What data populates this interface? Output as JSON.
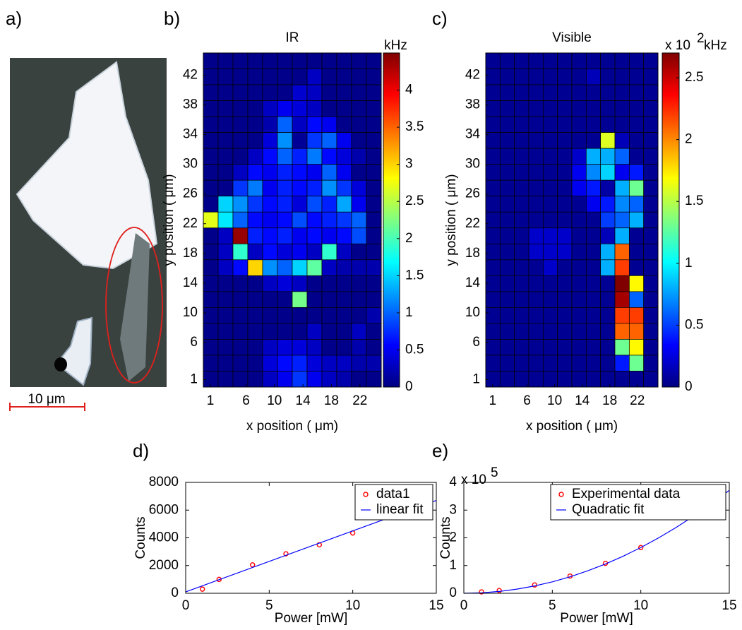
{
  "image_panel": {
    "panel": "a)",
    "scale_bar_label": "10 μm"
  },
  "chart_data": [
    {
      "type": "heatmap",
      "panel": "b)",
      "title": "IR",
      "colormap": "jet",
      "xlabel": "x position ( μm)",
      "ylabel": "y position ( μm)",
      "xlim": [
        0,
        25
      ],
      "ylim": [
        0,
        45
      ],
      "xticks": [
        1,
        6,
        10,
        14,
        18,
        22
      ],
      "yticks": [
        1,
        6,
        10,
        14,
        18,
        22,
        26,
        30,
        34,
        38,
        42
      ],
      "clim": [
        0,
        4.5
      ],
      "cticks": [
        0,
        0.5,
        1,
        1.5,
        2,
        2.5,
        3,
        3.5,
        4
      ],
      "colorbar_label": "kHz",
      "z": [
        [
          0.05,
          0.05,
          0.05,
          0.05,
          0.05,
          0.05,
          0.05,
          0.05,
          0.05,
          0.05,
          0.05,
          0.05
        ],
        [
          0.05,
          0.05,
          0.05,
          0.05,
          0.05,
          0.05,
          0.05,
          0.3,
          0.05,
          0.05,
          0.05,
          0.05
        ],
        [
          0.05,
          0.05,
          0.05,
          0.05,
          0.05,
          0.05,
          0.35,
          0.3,
          0.05,
          0.05,
          0.05,
          0.05
        ],
        [
          0.05,
          0.05,
          0.05,
          0.05,
          0.3,
          0.5,
          0.4,
          0.3,
          0.05,
          0.05,
          0.05,
          0.05
        ],
        [
          0.05,
          0.05,
          0.05,
          0.05,
          0.2,
          1.0,
          0.3,
          0.6,
          0.5,
          0.05,
          0.05,
          0.05
        ],
        [
          0.05,
          0.05,
          0.05,
          0.05,
          0.4,
          1.2,
          0.1,
          0.8,
          1.0,
          0.5,
          0.05,
          0.05
        ],
        [
          0.05,
          0.05,
          0.05,
          0.3,
          0.6,
          1.0,
          0.7,
          1.1,
          0.6,
          0.4,
          0.2,
          0.05
        ],
        [
          0.05,
          0.05,
          0.3,
          0.6,
          0.5,
          0.7,
          0.6,
          0.5,
          1.0,
          0.5,
          0.05,
          0.05
        ],
        [
          0.05,
          0.05,
          0.8,
          1.1,
          0.5,
          0.7,
          0.6,
          0.7,
          1.2,
          0.8,
          0.4,
          0.05
        ],
        [
          0.05,
          1.5,
          1.2,
          0.8,
          0.6,
          0.7,
          0.4,
          0.9,
          0.7,
          1.3,
          0.5,
          0.05
        ],
        [
          2.7,
          1.6,
          1.0,
          0.6,
          0.5,
          0.6,
          0.9,
          0.6,
          0.7,
          0.8,
          1.0,
          0.05
        ],
        [
          0.05,
          0.3,
          4.4,
          0.7,
          0.6,
          0.7,
          0.5,
          0.6,
          0.5,
          0.6,
          0.9,
          0.05
        ],
        [
          0.05,
          0.3,
          1.9,
          0.3,
          0.6,
          0.4,
          0.5,
          0.3,
          1.9,
          0.3,
          0.05,
          0.05
        ],
        [
          0.05,
          0.3,
          0.6,
          3.0,
          1.2,
          1.0,
          1.5,
          2.1,
          0.3,
          0.2,
          0.2,
          0.2
        ],
        [
          0.05,
          0.05,
          0.05,
          0.05,
          0.3,
          0.4,
          0.3,
          0.05,
          0.05,
          0.05,
          0.05,
          0.05
        ],
        [
          0.05,
          0.05,
          0.05,
          0.05,
          0.05,
          0.05,
          2.2,
          0.05,
          0.05,
          0.05,
          0.05,
          0.05
        ],
        [
          0.05,
          0.05,
          0.05,
          0.05,
          0.05,
          0.05,
          0.05,
          0.05,
          0.05,
          0.05,
          0.05,
          0.2
        ],
        [
          0.05,
          0.05,
          0.05,
          0.05,
          0.05,
          0.05,
          0.05,
          0.3,
          0.05,
          0.05,
          0.3,
          0.05
        ],
        [
          0.05,
          0.05,
          0.05,
          0.05,
          0.3,
          0.4,
          0.4,
          0.3,
          0.05,
          0.05,
          0.2,
          0.05
        ],
        [
          0.05,
          0.05,
          0.05,
          0.05,
          0.4,
          0.6,
          0.7,
          0.4,
          0.3,
          0.3,
          0.2,
          0.2
        ],
        [
          0.05,
          0.05,
          0.05,
          0.05,
          0.3,
          0.5,
          0.8,
          0.5,
          0.3,
          0.2,
          0.05,
          0.05
        ]
      ]
    },
    {
      "type": "heatmap",
      "panel": "c)",
      "title": "Visible",
      "colormap": "jet",
      "xlabel": "x position ( μm)",
      "ylabel": "y position ( μm)",
      "xlim": [
        0,
        25
      ],
      "ylim": [
        0,
        45
      ],
      "xticks": [
        1,
        6,
        10,
        14,
        18,
        22
      ],
      "yticks": [
        1,
        6,
        10,
        14,
        18,
        22,
        26,
        30,
        34,
        38,
        42
      ],
      "clim": [
        0,
        2.7
      ],
      "cticks": [
        0,
        0.5,
        1,
        1.5,
        2,
        2.5
      ],
      "colorbar_label": "x 10",
      "colorbar_label_power": "2",
      "colorbar_unit": "kHz",
      "z": [
        [
          0.05,
          0.05,
          0.05,
          0.05,
          0.05,
          0.05,
          0.05,
          0.05,
          0.05,
          0.05,
          0.05,
          0.05
        ],
        [
          0.05,
          0.05,
          0.05,
          0.05,
          0.05,
          0.05,
          0.05,
          0.15,
          0.05,
          0.05,
          0.05,
          0.05
        ],
        [
          0.05,
          0.05,
          0.05,
          0.05,
          0.05,
          0.05,
          0.05,
          0.05,
          0.05,
          0.05,
          0.05,
          0.05
        ],
        [
          0.05,
          0.05,
          0.05,
          0.05,
          0.05,
          0.05,
          0.05,
          0.05,
          0.05,
          0.05,
          0.05,
          0.05
        ],
        [
          0.05,
          0.05,
          0.05,
          0.05,
          0.05,
          0.05,
          0.05,
          0.05,
          0.05,
          0.05,
          0.05,
          0.05
        ],
        [
          0.05,
          0.05,
          0.05,
          0.05,
          0.05,
          0.05,
          0.05,
          0.05,
          1.6,
          0.15,
          0.05,
          0.05
        ],
        [
          0.05,
          0.05,
          0.05,
          0.05,
          0.05,
          0.05,
          0.2,
          0.8,
          0.8,
          0.6,
          0.05,
          0.05
        ],
        [
          0.05,
          0.05,
          0.05,
          0.05,
          0.05,
          0.05,
          0.3,
          0.7,
          0.9,
          0.3,
          0.4,
          0.05
        ],
        [
          0.05,
          0.05,
          0.05,
          0.05,
          0.05,
          0.05,
          0.3,
          0.4,
          0.1,
          0.8,
          1.3,
          0.05
        ],
        [
          0.05,
          0.05,
          0.05,
          0.05,
          0.05,
          0.05,
          0.05,
          0.3,
          0.4,
          0.7,
          0.6,
          0.05
        ],
        [
          0.05,
          0.05,
          0.05,
          0.05,
          0.05,
          0.05,
          0.05,
          0.05,
          0.5,
          0.6,
          0.8,
          0.05
        ],
        [
          0.05,
          0.05,
          0.05,
          0.2,
          0.2,
          0.2,
          0.05,
          0.05,
          0.15,
          0.8,
          0.05,
          0.05
        ],
        [
          0.05,
          0.05,
          0.05,
          0.2,
          0.2,
          0.2,
          0.05,
          0.05,
          0.8,
          2.1,
          0.05,
          0.05
        ],
        [
          0.05,
          0.05,
          0.05,
          0.05,
          0.2,
          0.05,
          0.05,
          0.05,
          0.8,
          2.2,
          0.05,
          0.05
        ],
        [
          0.05,
          0.05,
          0.05,
          0.05,
          0.05,
          0.05,
          0.05,
          0.05,
          0.05,
          2.7,
          1.7,
          0.05
        ],
        [
          0.05,
          0.05,
          0.05,
          0.05,
          0.05,
          0.05,
          0.05,
          0.05,
          0.05,
          2.6,
          0.6,
          0.05
        ],
        [
          0.05,
          0.05,
          0.05,
          0.05,
          0.05,
          0.05,
          0.05,
          0.05,
          0.05,
          2.2,
          2.2,
          0.05
        ],
        [
          0.05,
          0.05,
          0.05,
          0.05,
          0.05,
          0.05,
          0.05,
          0.05,
          0.05,
          2.1,
          2.1,
          0.05
        ],
        [
          0.05,
          0.05,
          0.05,
          0.05,
          0.05,
          0.05,
          0.05,
          0.05,
          0.05,
          1.3,
          1.7,
          0.05
        ],
        [
          0.05,
          0.05,
          0.05,
          0.05,
          0.05,
          0.05,
          0.05,
          0.05,
          0.05,
          0.4,
          1.3,
          0.05
        ],
        [
          0.05,
          0.05,
          0.05,
          0.05,
          0.05,
          0.05,
          0.05,
          0.05,
          0.05,
          0.05,
          0.05,
          0.05
        ]
      ]
    },
    {
      "type": "line",
      "panel": "d)",
      "xlabel": "Power [mW]",
      "ylabel": "Counts",
      "xlim": [
        0,
        15
      ],
      "ylim": [
        0,
        8000
      ],
      "xticks": [
        0,
        5,
        10,
        15
      ],
      "yticks": [
        0,
        2000,
        4000,
        6000,
        8000
      ],
      "legend": "upper right",
      "series": [
        {
          "name": "data1",
          "style": "markers",
          "color": "#ff0000",
          "x": [
            1,
            2,
            4,
            6,
            8,
            10
          ],
          "values": [
            300,
            1000,
            2050,
            2850,
            3500,
            4350
          ]
        },
        {
          "name": "linear fit",
          "style": "line",
          "color": "#0000ff",
          "x": [
            0,
            15
          ],
          "values": [
            100,
            6700
          ]
        }
      ]
    },
    {
      "type": "line",
      "panel": "e)",
      "xlabel": "Power [mW]",
      "ylabel": "Counts",
      "y_exponent_base": "x 10",
      "y_exponent": "5",
      "xlim": [
        0,
        15
      ],
      "ylim": [
        0,
        4
      ],
      "xticks": [
        0,
        5,
        10,
        15
      ],
      "yticks": [
        0,
        1,
        2,
        3,
        4
      ],
      "legend": "upper right",
      "series": [
        {
          "name": "Experimental data",
          "style": "markers",
          "color": "#ff0000",
          "x": [
            1,
            2,
            4,
            6,
            8,
            10
          ],
          "values": [
            0.05,
            0.1,
            0.3,
            0.62,
            1.08,
            1.65
          ]
        },
        {
          "name": "Quadratic fit",
          "style": "line",
          "color": "#0000ff",
          "x": [
            0,
            1,
            2,
            3,
            4,
            5,
            6,
            7,
            8,
            9,
            10,
            11,
            12,
            13,
            14,
            15
          ],
          "values": [
            0,
            0.0165,
            0.066,
            0.149,
            0.264,
            0.413,
            0.594,
            0.809,
            1.056,
            1.337,
            1.65,
            1.997,
            2.376,
            2.789,
            3.234,
            3.713
          ]
        }
      ]
    }
  ]
}
